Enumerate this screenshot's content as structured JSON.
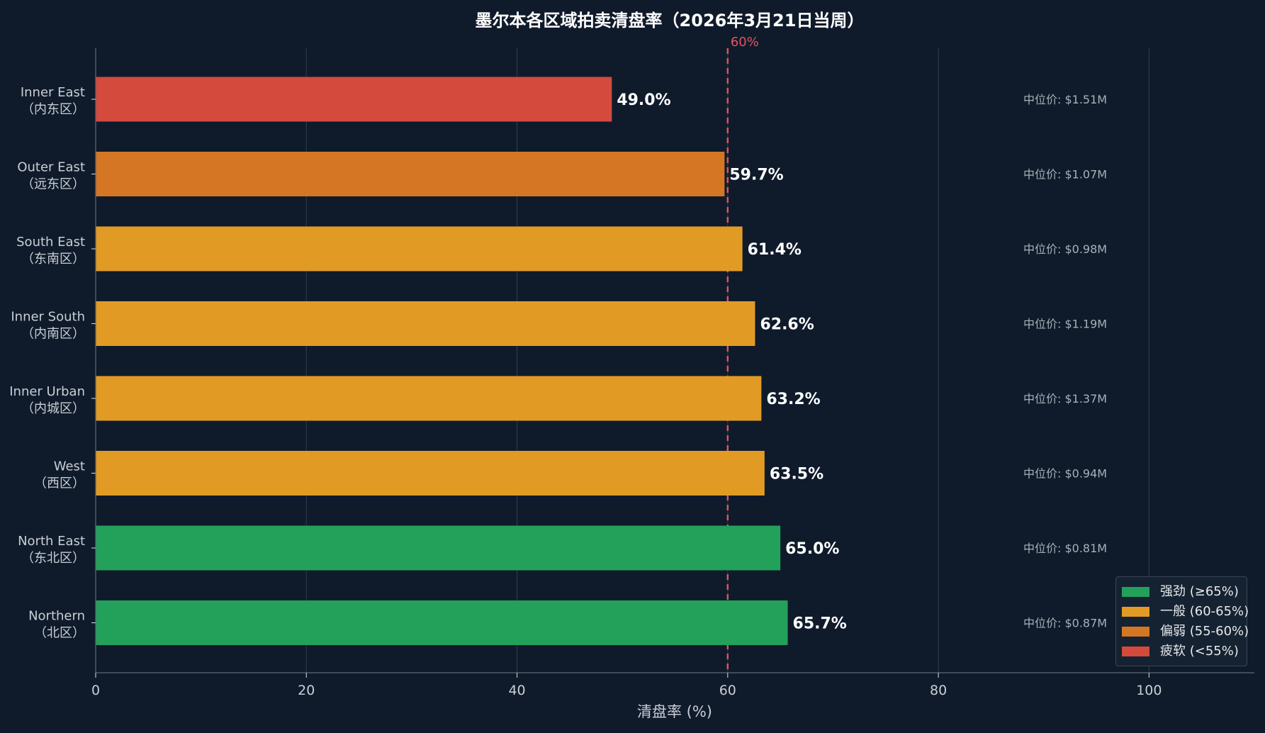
{
  "chart_data": {
    "type": "bar",
    "orientation": "horizontal",
    "title": "墨尔本各区域拍卖清盘率（2026年3月21日当周）",
    "xlabel": "清盘率 (%)",
    "ylabel": "",
    "xlim": [
      0,
      110
    ],
    "xticks": [
      0,
      20,
      40,
      60,
      80,
      100
    ],
    "grid": true,
    "categories": [
      "Inner East\n（内东区）",
      "Outer East\n（远东区）",
      "South East\n（东南区）",
      "Inner South\n（内南区）",
      "Inner Urban\n（内城区）",
      "West\n（西区）",
      "North East\n（东北区）",
      "Northern\n（北区）"
    ],
    "values": [
      49.0,
      59.7,
      61.4,
      62.6,
      63.2,
      63.5,
      65.0,
      65.7
    ],
    "value_labels": [
      "49.0%",
      "59.7%",
      "61.4%",
      "62.6%",
      "63.2%",
      "63.5%",
      "65.0%",
      "65.7%"
    ],
    "median_prices": [
      "中位价: $1.51M",
      "中位价: $1.07M",
      "中位价: $0.98M",
      "中位价: $1.19M",
      "中位价: $1.37M",
      "中位价: $0.94M",
      "中位价: $0.81M",
      "中位价: $0.87M"
    ],
    "bar_colors": [
      "#d44a3c",
      "#d47624",
      "#e19b24",
      "#e19b24",
      "#e19b24",
      "#e19b24",
      "#23a05a",
      "#23a05a"
    ],
    "reference_line": {
      "value": 60,
      "label": "60%",
      "color": "#e0555f",
      "style": "dashed"
    },
    "legend": {
      "placement": "bottom-right",
      "items": [
        {
          "label": "强劲 (≥65%)",
          "color": "#23a05a"
        },
        {
          "label": "一般 (60-65%)",
          "color": "#e19b24"
        },
        {
          "label": "偏弱 (55-60%)",
          "color": "#d47624"
        },
        {
          "label": "疲软 (<55%)",
          "color": "#d44a3c"
        }
      ]
    },
    "colors": {
      "background": "#0f1b2b",
      "grid": "#2c3847",
      "axis": "#5d6773",
      "tick_text": "#c9ced4",
      "title": "#ffffff",
      "bar_value_text": "#ffffff",
      "median_text": "#a8b0b8"
    }
  }
}
